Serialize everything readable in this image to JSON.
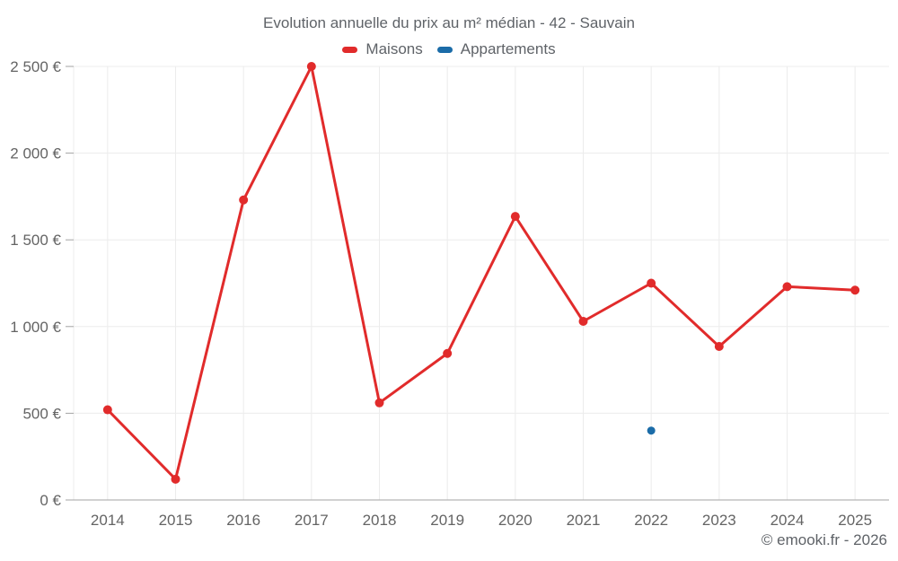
{
  "chart_data": {
    "type": "line",
    "title": "Evolution annuelle du prix au m² médian - 42 - Sauvain",
    "categories": [
      "2014",
      "2015",
      "2016",
      "2017",
      "2018",
      "2019",
      "2020",
      "2021",
      "2022",
      "2023",
      "2024",
      "2025"
    ],
    "series": [
      {
        "name": "Maisons",
        "color": "#e12b2b",
        "style": "line-with-points",
        "values": [
          520,
          120,
          1730,
          2500,
          560,
          845,
          1635,
          1030,
          1250,
          885,
          1230,
          1210
        ]
      },
      {
        "name": "Appartements",
        "color": "#1b6ca8",
        "style": "points-only",
        "values": [
          null,
          null,
          null,
          null,
          null,
          null,
          null,
          null,
          400,
          null,
          null,
          null
        ]
      }
    ],
    "ylim": [
      0,
      2500
    ],
    "yticks": [
      0,
      500,
      1000,
      1500,
      2000,
      2500
    ],
    "ytick_labels": [
      "0 €",
      "500 €",
      "1 000 €",
      "1 500 €",
      "2 000 €",
      "2 500 €"
    ],
    "unit": "€",
    "grid": true,
    "legend_position": "top"
  },
  "footer": {
    "credit": "© emooki.fr - 2026"
  },
  "style": {
    "grid_color": "#ececec",
    "axis_color": "#a3a3a3",
    "text_color": "#646464",
    "title_color": "#5f6368"
  }
}
